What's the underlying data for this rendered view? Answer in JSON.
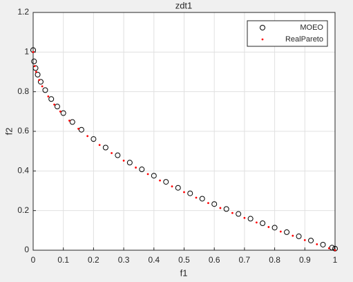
{
  "chart_data": {
    "type": "scatter",
    "title": "zdt1",
    "xlabel": "f1",
    "ylabel": "f2",
    "xlim": [
      0,
      1
    ],
    "ylim": [
      0,
      1.2
    ],
    "xticks": [
      0,
      0.1,
      0.2,
      0.3,
      0.4,
      0.5,
      0.6,
      0.7,
      0.8,
      0.9,
      1
    ],
    "yticks": [
      0,
      0.2,
      0.4,
      0.6,
      0.8,
      1,
      1.2
    ],
    "grid": true,
    "legend": "upper right",
    "series": [
      {
        "name": "MOEO",
        "color": "#000000",
        "marker": "circle",
        "x": [
          0,
          0.003,
          0.008,
          0.015,
          0.025,
          0.04,
          0.06,
          0.08,
          0.1,
          0.13,
          0.16,
          0.2,
          0.24,
          0.28,
          0.32,
          0.36,
          0.4,
          0.44,
          0.48,
          0.52,
          0.56,
          0.6,
          0.64,
          0.68,
          0.72,
          0.76,
          0.8,
          0.84,
          0.88,
          0.92,
          0.96,
          0.99,
          1.0
        ],
        "values": [
          1.01,
          0.953,
          0.919,
          0.886,
          0.85,
          0.808,
          0.763,
          0.725,
          0.692,
          0.647,
          0.608,
          0.561,
          0.518,
          0.479,
          0.442,
          0.408,
          0.376,
          0.345,
          0.315,
          0.287,
          0.26,
          0.233,
          0.208,
          0.183,
          0.159,
          0.136,
          0.114,
          0.091,
          0.07,
          0.049,
          0.028,
          0.013,
          0.008
        ]
      },
      {
        "name": "RealPareto",
        "color": "#ff0000",
        "marker": "dot",
        "x": [
          0,
          0.005,
          0.01,
          0.02,
          0.03,
          0.05,
          0.07,
          0.09,
          0.12,
          0.15,
          0.18,
          0.22,
          0.26,
          0.3,
          0.34,
          0.38,
          0.42,
          0.46,
          0.5,
          0.54,
          0.58,
          0.62,
          0.66,
          0.7,
          0.74,
          0.78,
          0.82,
          0.86,
          0.9,
          0.94,
          0.98,
          1
        ],
        "values": [
          1,
          0.929,
          0.9,
          0.859,
          0.827,
          0.776,
          0.735,
          0.7,
          0.654,
          0.613,
          0.576,
          0.531,
          0.49,
          0.452,
          0.417,
          0.384,
          0.352,
          0.322,
          0.293,
          0.265,
          0.238,
          0.213,
          0.188,
          0.163,
          0.14,
          0.117,
          0.094,
          0.073,
          0.051,
          0.03,
          0.01,
          0
        ]
      }
    ]
  }
}
